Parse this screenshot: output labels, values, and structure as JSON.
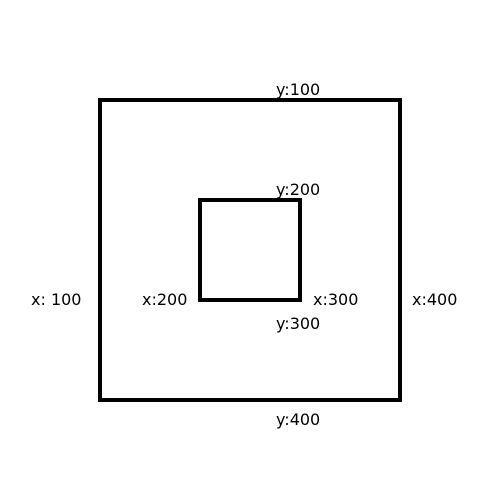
{
  "labels": {
    "outer_top": "y:100",
    "inner_top": "y:200",
    "outer_left": "x: 100",
    "inner_left": "x:200",
    "inner_right": "x:300",
    "outer_right": "x:400",
    "inner_bottom": "y:300",
    "outer_bottom": "y:400"
  },
  "colors": {
    "stroke": "#000000",
    "background": "#ffffff",
    "text": "#000000"
  }
}
